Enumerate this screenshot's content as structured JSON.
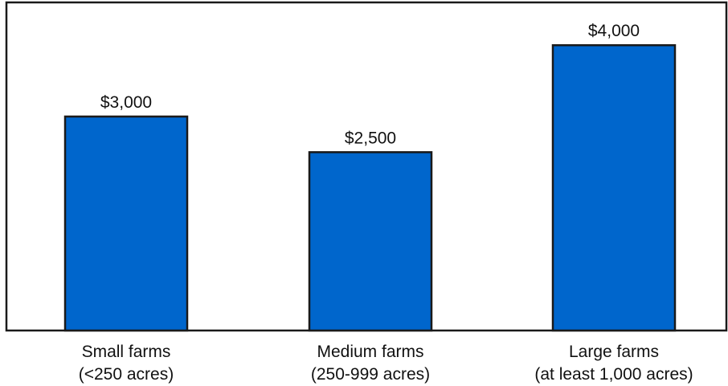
{
  "chart_data": {
    "type": "bar",
    "categories": [
      [
        "Small farms",
        "(<250 acres)"
      ],
      [
        "Medium farms",
        "(250-999 acres)"
      ],
      [
        "Large farms",
        "(at least 1,000 acres)"
      ]
    ],
    "values": [
      3000,
      2500,
      4000
    ],
    "value_labels": [
      "$3,000",
      "$2,500",
      "$4,000"
    ],
    "title": "",
    "xlabel": "",
    "ylabel": "",
    "ylim": [
      0,
      4600
    ],
    "grid": false,
    "legend": "none",
    "bar_color": "#0066CC"
  }
}
